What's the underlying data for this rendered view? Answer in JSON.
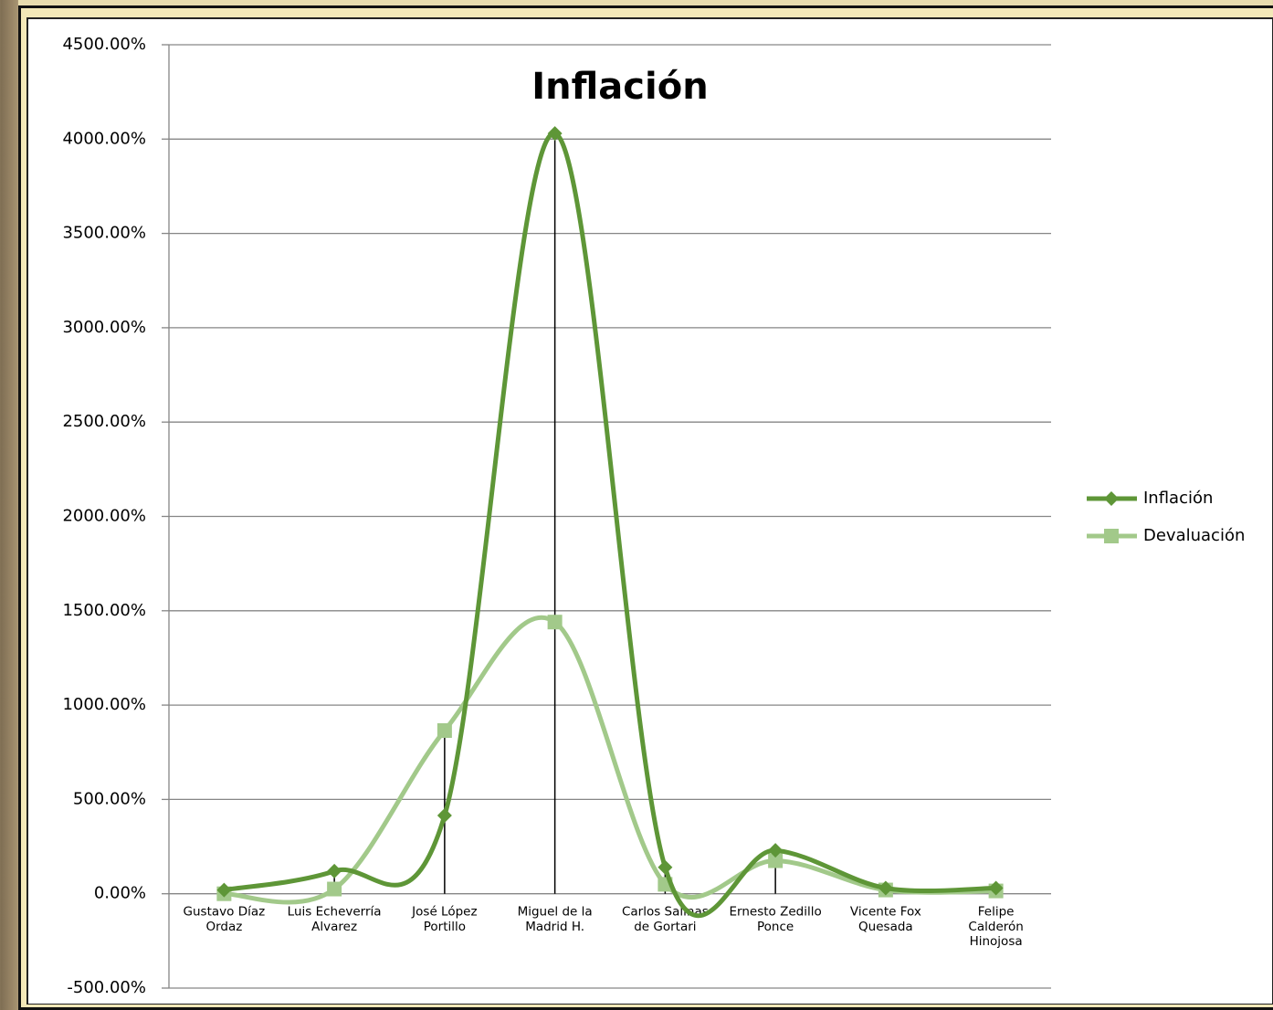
{
  "chart_data": {
    "type": "line",
    "title": "Inflación",
    "categories": [
      "Gustavo Díaz\nOrdaz",
      "Luis Echeverría\nAlvarez",
      "José López\nPortillo",
      "Miguel de la\nMadrid H.",
      "Carlos Salinas\nde Gortari",
      "Ernesto Zedillo\nPonce",
      "Vicente Fox\nQuesada",
      "Felipe\nCalderón\nHinojosa"
    ],
    "series": [
      {
        "name": "Inflación",
        "color": "#5e9637",
        "marker": "diamond",
        "values": [
          20,
          120,
          415,
          4030,
          140,
          230,
          30,
          30
        ]
      },
      {
        "name": "Devaluación",
        "color": "#a2c98a",
        "marker": "square",
        "values": [
          0,
          25,
          865,
          1440,
          50,
          175,
          20,
          15
        ]
      }
    ],
    "ylim": [
      -500,
      4500
    ],
    "yticks": [
      {
        "value": -500,
        "label": "-500.00%"
      },
      {
        "value": 0,
        "label": "0.00%"
      },
      {
        "value": 500,
        "label": "500.00%"
      },
      {
        "value": 1000,
        "label": "1000.00%"
      },
      {
        "value": 1500,
        "label": "1500.00%"
      },
      {
        "value": 2000,
        "label": "2000.00%"
      },
      {
        "value": 2500,
        "label": "2500.00%"
      },
      {
        "value": 3000,
        "label": "3000.00%"
      },
      {
        "value": 3500,
        "label": "3500.00%"
      },
      {
        "value": 4000,
        "label": "4000.00%"
      },
      {
        "value": 4500,
        "label": "4500.00%"
      }
    ],
    "grid": true,
    "smooth": true,
    "drop_lines": true,
    "legend": "right"
  }
}
